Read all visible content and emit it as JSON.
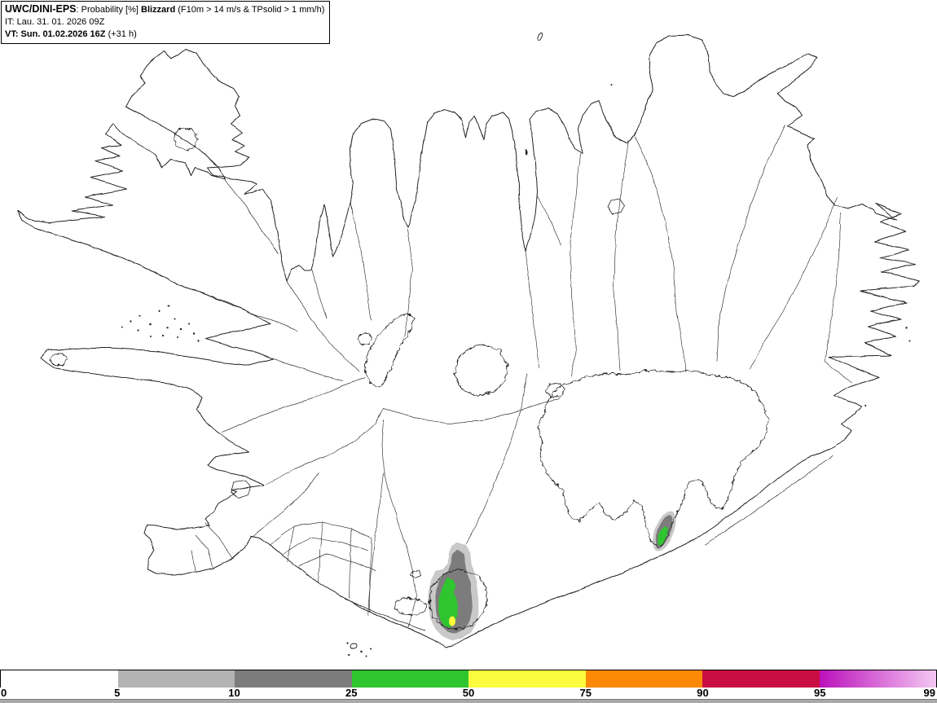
{
  "header": {
    "model": "UWC/DINI-EPS",
    "separator": ": ",
    "product": "Probability [%] ",
    "phenomenon": "Blizzard",
    "criteria": " (F10m > 14 m/s & TPsolid > 1 mm/h)",
    "init_time": "IT: Lau. 31. 01. 2026 09Z",
    "valid_time": "VT: Sun. 01.02.2026 16Z",
    "valid_offset": " (+31 h)"
  },
  "colorbar": {
    "unit": "%",
    "ticks": [
      "0",
      "5",
      "10",
      "25",
      "50",
      "75",
      "90",
      "95",
      "99"
    ],
    "segments": [
      {
        "from": 0,
        "to": 5,
        "color": "#ffffff"
      },
      {
        "from": 5,
        "to": 10,
        "color": "#b3b3b3"
      },
      {
        "from": 10,
        "to": 25,
        "color": "#7c7c7c"
      },
      {
        "from": 25,
        "to": 50,
        "color": "#2fc52f"
      },
      {
        "from": 50,
        "to": 75,
        "color": "#fcfc3e"
      },
      {
        "from": 75,
        "to": 90,
        "color": "#fd8803"
      },
      {
        "from": 90,
        "to": 95,
        "color": "#ca0d43"
      },
      {
        "from": 95,
        "to": 99,
        "color": "#bb11bb",
        "gradient_to": "#f4c7f2"
      }
    ]
  },
  "map": {
    "region": "Iceland",
    "coastline_color": "#222222",
    "probability_areas": [
      {
        "id": "south-central",
        "max_band": "50-75",
        "band_colors": [
          "#c9c9c9",
          "#7c7c7c",
          "#2fc52f",
          "#fcfc3e"
        ]
      },
      {
        "id": "southeast",
        "max_band": "25-50",
        "band_colors": [
          "#c9c9c9",
          "#7c7c7c",
          "#2fc52f"
        ]
      }
    ]
  }
}
